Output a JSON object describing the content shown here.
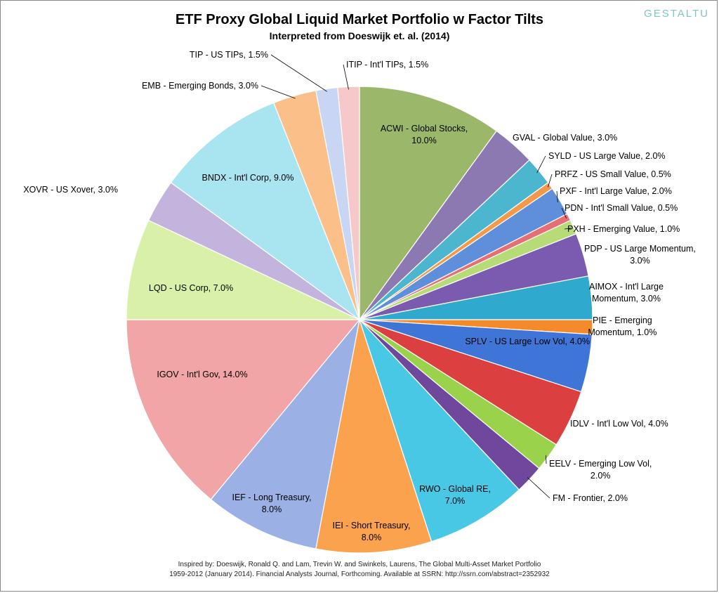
{
  "brand": "GESTALTU",
  "chart_data": {
    "type": "pie",
    "title": "ETF Proxy Global Liquid Market Portfolio w Factor Tilts",
    "subtitle": "Interpreted from Doeswijk et. al. (2014)",
    "slices": [
      {
        "label": "ACWI - Global Stocks, 10.0%",
        "value": 10.0,
        "color": "#9bb86a"
      },
      {
        "label": "GVAL - Global Value, 3.0%",
        "value": 3.0,
        "color": "#8c79b1"
      },
      {
        "label": "SYLD - US Large Value, 2.0%",
        "value": 2.0,
        "color": "#4db6cf"
      },
      {
        "label": "PRFZ - US Small Value, 0.5%",
        "value": 0.5,
        "color": "#f29a4a"
      },
      {
        "label": "PXF - Int'l Large Value, 2.0%",
        "value": 2.0,
        "color": "#5f8fda"
      },
      {
        "label": "PDN - Int'l Small Value, 0.5%",
        "value": 0.5,
        "color": "#e76f73"
      },
      {
        "label": "PXH - Emerging Value, 1.0%",
        "value": 1.0,
        "color": "#b7dc77"
      },
      {
        "label": "PDP - US Large Momentum, 3.0%",
        "value": 3.0,
        "color": "#7a5bb0"
      },
      {
        "label": "AIMOX - Int'l Large Momentum, 3.0%",
        "value": 3.0,
        "color": "#30a9cf"
      },
      {
        "label": "PIE - Emerging Momentum, 1.0%",
        "value": 1.0,
        "color": "#f58a2a"
      },
      {
        "label": "SPLV - US Large Low Vol, 4.0%",
        "value": 4.0,
        "color": "#3e75d6"
      },
      {
        "label": "IDLV - Int'l Low Vol, 4.0%",
        "value": 4.0,
        "color": "#db3f3f"
      },
      {
        "label": "EELV - Emerging Low Vol, 2.0%",
        "value": 2.0,
        "color": "#9ad24b"
      },
      {
        "label": "FM - Frontier, 2.0%",
        "value": 2.0,
        "color": "#6f479d"
      },
      {
        "label": "RWO - Global RE, 7.0%",
        "value": 7.0,
        "color": "#49c8e6"
      },
      {
        "label": "IEI - Short Treasury, 8.0%",
        "value": 8.0,
        "color": "#fba24f"
      },
      {
        "label": "IEF - Long Treasury, 8.0%",
        "value": 8.0,
        "color": "#9bb1e6"
      },
      {
        "label": "IGOV - Int'l Gov, 14.0%",
        "value": 14.0,
        "color": "#f1a5a6"
      },
      {
        "label": "LQD - US Corp, 7.0%",
        "value": 7.0,
        "color": "#d8f0a8"
      },
      {
        "label": "XOVR - US Xover, 3.0%",
        "value": 3.0,
        "color": "#c3b4de"
      },
      {
        "label": "BNDX - Int'l Corp, 9.0%",
        "value": 9.0,
        "color": "#a9e4f1"
      },
      {
        "label": "EMB - Emerging Bonds, 3.0%",
        "value": 3.0,
        "color": "#fbc08a"
      },
      {
        "label": "TIP - US TIPs, 1.5%",
        "value": 1.5,
        "color": "#c9d6f3"
      },
      {
        "label": "ITIP - Int'l TIPs, 1.5%",
        "value": 1.5,
        "color": "#f6c8c9"
      }
    ],
    "display_labels": [
      [
        "ACWI - Global Stocks,",
        "10.0%"
      ],
      [
        "GVAL - Global Value, 3.0%"
      ],
      [
        "SYLD - US Large Value, 2.0%"
      ],
      [
        "PRFZ - US Small Value, 0.5%"
      ],
      [
        "PXF - Int'l Large Value, 2.0%"
      ],
      [
        "PDN - Int'l Small Value, 0.5%"
      ],
      [
        "PXH - Emerging Value, 1.0%"
      ],
      [
        "PDP - US Large Momentum,",
        "3.0%"
      ],
      [
        "AIMOX - Int'l Large",
        "Momentum, 3.0%"
      ],
      [
        "PIE - Emerging",
        "Momentum, 1.0%"
      ],
      [
        "SPLV - US Large Low Vol, 4.0%"
      ],
      [
        "IDLV - Int'l Low Vol, 4.0%"
      ],
      [
        "EELV - Emerging Low Vol,",
        "2.0%"
      ],
      [
        "FM - Frontier, 2.0%"
      ],
      [
        "RWO - Global RE,",
        "7.0%"
      ],
      [
        "IEI - Short Treasury,",
        "8.0%"
      ],
      [
        "IEF - Long Treasury,",
        "8.0%"
      ],
      [
        "IGOV - Int'l Gov, 14.0%"
      ],
      [
        "LQD - US Corp, 7.0%"
      ],
      [
        "XOVR - US Xover, 3.0%"
      ],
      [
        "BNDX - Int'l Corp, 9.0%"
      ],
      [
        "EMB - Emerging Bonds, 3.0%"
      ],
      [
        "TIP - US TIPs, 1.5%"
      ],
      [
        "ITIP - Int'l TIPs, 1.5%"
      ]
    ]
  },
  "footnote": {
    "line1": "Inspired by: Doeswijk, Ronald Q. and Lam, Trevin W. and Swinkels, Laurens, The Global Multi-Asset Market Portfolio",
    "line2": "1959-2012 (January 2014). Financial Analysts Journal, Forthcoming. Available at SSRN: http://ssrn.com/abstract=2352932"
  }
}
